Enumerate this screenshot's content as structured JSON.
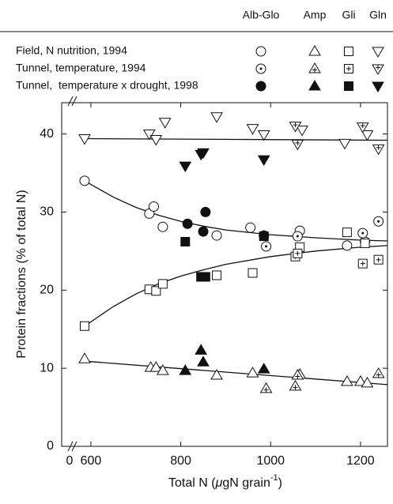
{
  "chart_data": {
    "type": "scatter",
    "fractions": [
      "Alb-Glo",
      "Amp",
      "Gli",
      "Gln"
    ],
    "markers": [
      "circle",
      "triangle",
      "square",
      "triangle-down"
    ],
    "groups": [
      {
        "name": "Field, N nutrition, 1994",
        "style": "open",
        "series": [
          {
            "x": [
              586,
              730,
              740,
              760,
              880,
              955,
              1065,
              1170,
              1210
            ],
            "values": [
              34.0,
              29.8,
              30.7,
              28.1,
              27.0,
              28.0,
              27.6,
              25.7,
              26.2
            ]
          },
          {
            "x": [
              586,
              733,
              745,
              760,
              880,
              960,
              1065,
              1170,
              1200,
              1215
            ],
            "values": [
              11.2,
              10.1,
              10.1,
              9.7,
              9.1,
              9.4,
              9.2,
              8.3,
              8.3,
              8.1
            ]
          },
          {
            "x": [
              586,
              730,
              745,
              760,
              880,
              960,
              1065,
              1170,
              1210
            ],
            "values": [
              15.4,
              20.1,
              19.9,
              20.8,
              21.9,
              22.2,
              25.5,
              27.4,
              26.0
            ]
          },
          {
            "x": [
              586,
              730,
              745,
              765,
              880,
              960,
              985,
              1070,
              1165,
              1215
            ],
            "values": [
              39.4,
              40.0,
              39.3,
              41.5,
              42.2,
              40.7,
              39.9,
              40.5,
              38.8,
              39.9
            ]
          }
        ]
      },
      {
        "name": "Tunnel, temperature, 1994",
        "style": "cross",
        "series": [
          {
            "x": [
              990,
              1060,
              1205,
              1240
            ],
            "values": [
              25.6,
              26.9,
              27.3,
              28.8
            ]
          },
          {
            "x": [
              990,
              1055,
              1060,
              1240
            ],
            "values": [
              7.4,
              7.7,
              9.1,
              9.3
            ]
          },
          {
            "x": [
              1055,
              1060,
              1205,
              1240
            ],
            "values": [
              24.3,
              24.7,
              23.4,
              23.9
            ]
          },
          {
            "x": [
              1055,
              1060,
              1205,
              1240
            ],
            "values": [
              41.0,
              38.7,
              40.9,
              38.1
            ]
          }
        ]
      },
      {
        "name": "Tunnel,  temperature x drought, 1998",
        "style": "filled",
        "series": [
          {
            "x": [
              815,
              850,
              855,
              985
            ],
            "values": [
              28.5,
              27.5,
              30.0,
              27.0
            ]
          },
          {
            "x": [
              810,
              845,
              850,
              985
            ],
            "values": [
              9.7,
              12.3,
              10.8,
              9.9
            ]
          },
          {
            "x": [
              810,
              845,
              855,
              985
            ],
            "values": [
              26.2,
              21.7,
              21.7,
              26.9
            ]
          },
          {
            "x": [
              810,
              845,
              850,
              985
            ],
            "values": [
              35.9,
              37.4,
              37.6,
              36.7
            ]
          }
        ]
      }
    ],
    "fits": [
      {
        "x": [
          586,
          650,
          700,
          750,
          800,
          850,
          900,
          1000,
          1100,
          1200,
          1260
        ],
        "values": [
          34.0,
          31.9,
          30.6,
          29.6,
          28.8,
          28.2,
          27.7,
          27.1,
          26.7,
          26.4,
          26.3
        ]
      },
      {
        "x": [
          586,
          1260
        ],
        "values": [
          10.9,
          7.9
        ]
      },
      {
        "x": [
          586,
          650,
          700,
          750,
          800,
          850,
          900,
          1000,
          1100,
          1200,
          1260
        ],
        "values": [
          15.4,
          17.9,
          19.5,
          20.8,
          21.8,
          22.6,
          23.3,
          24.3,
          25.0,
          25.5,
          25.7
        ]
      },
      {
        "x": [
          586,
          1260
        ],
        "values": [
          39.4,
          39.2
        ]
      }
    ],
    "ylabel": "Protein fractions (% of total N)",
    "xlabel": {
      "main": "Total N (",
      "mu": "μ",
      "rest": "gN grain",
      "sup": "-1",
      "end": ")"
    },
    "xlim": [
      535,
      1260
    ],
    "ylim": [
      0,
      44
    ],
    "xticks": [
      600,
      800,
      1000,
      1200
    ],
    "xbreak_tick": 0,
    "yticks": [
      0,
      10,
      20,
      30,
      40
    ],
    "color": "#111"
  }
}
